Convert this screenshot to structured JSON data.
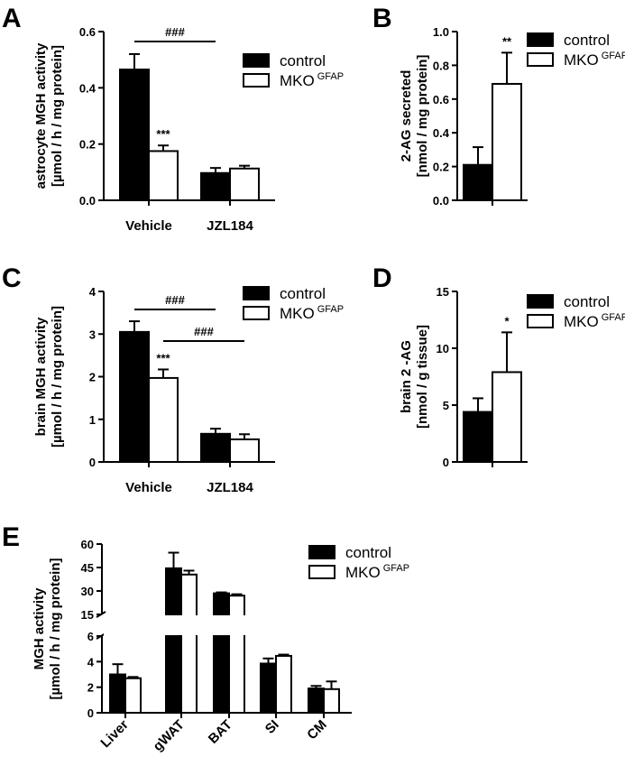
{
  "legend": {
    "control": "control",
    "mko": "MKO",
    "mko_sup": "GFAP"
  },
  "chart_data": [
    {
      "id": "A",
      "panel_label": "A",
      "type": "bar",
      "ylabel": [
        "astrocyte MGH activity",
        "[µmol / h / mg protein]"
      ],
      "ylim": [
        0,
        0.6
      ],
      "yticks": [
        "0.0",
        "0.2",
        "0.4",
        "0.6"
      ],
      "categories": [
        "Vehicle",
        "JZL184"
      ],
      "series": [
        {
          "name": "control",
          "fill": "#000000",
          "values": [
            0.465,
            0.097
          ],
          "errors": [
            0.055,
            0.018
          ]
        },
        {
          "name": "MKO GFAP",
          "fill": "#ffffff",
          "values": [
            0.175,
            0.113
          ],
          "errors": [
            0.02,
            0.01
          ]
        }
      ],
      "annotations": [
        {
          "text": "***",
          "category": 0,
          "series": 1
        }
      ],
      "brackets": [
        {
          "text": "###",
          "from": [
            0,
            0
          ],
          "to": [
            1,
            0
          ]
        }
      ]
    },
    {
      "id": "B",
      "panel_label": "B",
      "type": "bar",
      "ylabel": [
        "2-AG secreted",
        "[nmol / mg protein]"
      ],
      "ylim": [
        0,
        1.0
      ],
      "yticks": [
        "0.0",
        "0.2",
        "0.4",
        "0.6",
        "0.8",
        "1.0"
      ],
      "categories": [
        ""
      ],
      "series": [
        {
          "name": "control",
          "fill": "#000000",
          "values": [
            0.21
          ],
          "errors": [
            0.105
          ]
        },
        {
          "name": "MKO GFAP",
          "fill": "#ffffff",
          "values": [
            0.69
          ],
          "errors": [
            0.185
          ]
        }
      ],
      "annotations": [
        {
          "text": "**",
          "category": 0,
          "series": 1
        }
      ],
      "brackets": []
    },
    {
      "id": "C",
      "panel_label": "C",
      "type": "bar",
      "ylabel": [
        "brain MGH activity",
        "[µmol / h / mg protein]"
      ],
      "ylim": [
        0,
        4
      ],
      "yticks": [
        "0",
        "1",
        "2",
        "3",
        "4"
      ],
      "categories": [
        "Vehicle",
        "JZL184"
      ],
      "series": [
        {
          "name": "control",
          "fill": "#000000",
          "values": [
            3.05,
            0.66
          ],
          "errors": [
            0.25,
            0.12
          ]
        },
        {
          "name": "MKO GFAP",
          "fill": "#ffffff",
          "values": [
            1.97,
            0.53
          ],
          "errors": [
            0.2,
            0.12
          ]
        }
      ],
      "annotations": [
        {
          "text": "***",
          "category": 0,
          "series": 1
        }
      ],
      "brackets": [
        {
          "text": "###",
          "from": [
            0,
            0
          ],
          "to": [
            1,
            0
          ]
        },
        {
          "text": "###",
          "from": [
            0,
            1
          ],
          "to": [
            1,
            1
          ]
        }
      ]
    },
    {
      "id": "D",
      "panel_label": "D",
      "type": "bar",
      "ylabel": [
        "brain 2 -AG",
        "[nmol / g tissue]"
      ],
      "ylim": [
        0,
        15
      ],
      "yticks": [
        "0",
        "5",
        "10",
        "15"
      ],
      "categories": [
        ""
      ],
      "series": [
        {
          "name": "control",
          "fill": "#000000",
          "values": [
            4.4
          ],
          "errors": [
            1.2
          ]
        },
        {
          "name": "MKO GFAP",
          "fill": "#ffffff",
          "values": [
            7.9
          ],
          "errors": [
            3.5
          ]
        }
      ],
      "annotations": [
        {
          "text": "*",
          "category": 0,
          "series": 1
        }
      ],
      "brackets": []
    },
    {
      "id": "E",
      "panel_label": "E",
      "type": "bar",
      "ylabel": [
        "MGH activity",
        "[µmol / h / mg protein]"
      ],
      "broken_axis": {
        "lower_range": [
          0,
          6
        ],
        "upper_range": [
          15,
          60
        ]
      },
      "yticks_lower": [
        "0",
        "2",
        "4",
        "6"
      ],
      "yticks_upper": [
        "15",
        "30",
        "45",
        "60"
      ],
      "categories": [
        "Liver",
        "gWAT",
        "BAT",
        "SI",
        "CM"
      ],
      "series": [
        {
          "name": "control",
          "fill": "#000000",
          "values": [
            3.0,
            44.5,
            28.5,
            3.85,
            1.9
          ],
          "errors": [
            0.8,
            10,
            0.6,
            0.4,
            0.2
          ]
        },
        {
          "name": "MKO GFAP",
          "fill": "#ffffff",
          "values": [
            2.7,
            40.5,
            27.0,
            4.45,
            1.85
          ],
          "errors": [
            0.1,
            2.5,
            0.9,
            0.1,
            0.6
          ]
        }
      ],
      "annotations": [],
      "brackets": []
    }
  ]
}
